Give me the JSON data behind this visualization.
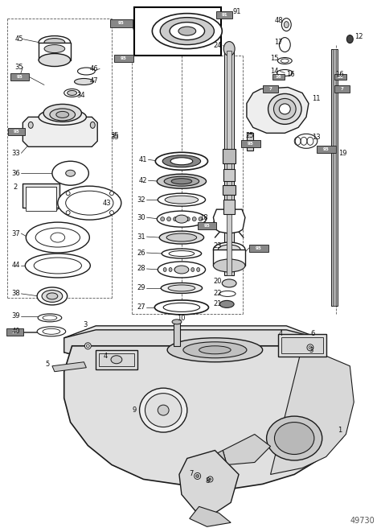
{
  "bg_color": "#ffffff",
  "line_color": "#1a1a1a",
  "text_color": "#111111",
  "dashed_line_color": "#555555",
  "fig_width": 4.74,
  "fig_height": 6.56,
  "dpi": 100,
  "watermark": "49730"
}
